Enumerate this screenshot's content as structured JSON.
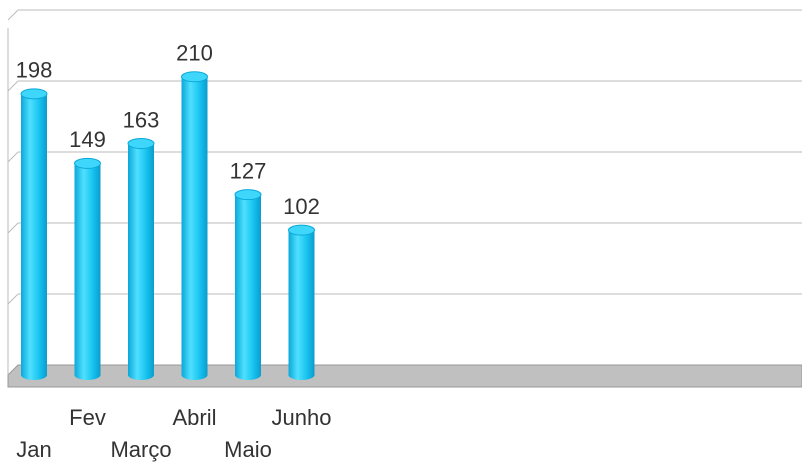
{
  "chart_data": {
    "type": "bar",
    "categories": [
      "Jan",
      "Fev",
      "Março",
      "Abril",
      "Maio",
      "Junho"
    ],
    "values": [
      198,
      149,
      163,
      210,
      127,
      102
    ],
    "color": "#1ec8f0",
    "ylim": [
      0,
      250
    ],
    "yticks": [
      0,
      50,
      100,
      150,
      200,
      250
    ],
    "grid": true
  }
}
